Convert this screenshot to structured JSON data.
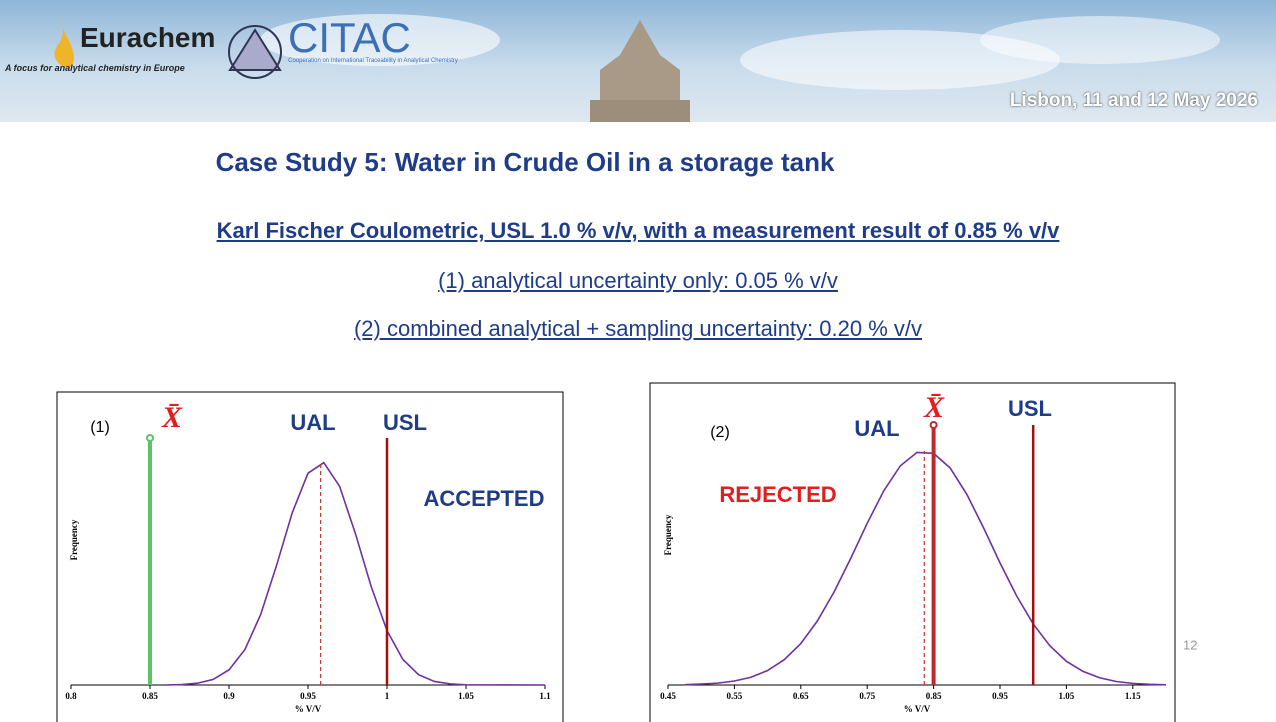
{
  "header": {
    "eurachem": "Eurachem",
    "eurachem_tagline": "A focus for analytical chemistry in Europe",
    "citac": "CITAC",
    "citac_tagline": "Cooperation on International Traceability in Analytical Chemistry",
    "event": "Lisbon, 11 and 12 May 2026"
  },
  "title": "Case Study 5: Water in Crude Oil in a storage tank",
  "lines": [
    "Karl Fischer Coulometric, USL 1.0 % v/v, with a measurement result of 0.85 % v/v",
    "(1) analytical uncertainty only: 0.05 % v/v",
    "(2) combined analytical + sampling uncertainty: 0.20 % v/v"
  ],
  "page_number": "12",
  "chart_data": [
    {
      "type": "line",
      "panel": "(1)",
      "status": "ACCEPTED",
      "status_color": "#1f3c88",
      "xlabel": "% V/V",
      "ylabel": "Frequency",
      "color": "#7030a0",
      "x": [
        0.86,
        0.87,
        0.88,
        0.89,
        0.9,
        0.91,
        0.92,
        0.93,
        0.94,
        0.95,
        0.96,
        0.97,
        0.98,
        0.99,
        1.0,
        1.01,
        1.02,
        1.03,
        1.04,
        1.05,
        1.1
      ],
      "values": [
        0.0,
        0.002,
        0.008,
        0.025,
        0.068,
        0.158,
        0.315,
        0.534,
        0.772,
        0.95,
        0.997,
        0.891,
        0.679,
        0.441,
        0.244,
        0.115,
        0.046,
        0.016,
        0.005,
        0.001,
        0.0
      ],
      "xlim": [
        0.8,
        1.1
      ],
      "ylim": [
        0,
        1
      ],
      "xticks": [
        0.8,
        0.85,
        0.9,
        0.95,
        1,
        1.05,
        1.1
      ],
      "markers": [
        {
          "label": "X̄",
          "x": 0.85,
          "color": "#5cc36a",
          "dashed": false
        },
        {
          "label": "UAL",
          "x": 0.958,
          "color": "#c0392b",
          "dashed": true
        },
        {
          "label": "USL",
          "x": 1.0,
          "color": "#a01010",
          "dashed": false
        }
      ]
    },
    {
      "type": "line",
      "panel": "(2)",
      "status": "REJECTED",
      "status_color": "#e02020",
      "xlabel": "% V/V",
      "ylabel": "Frequency",
      "color": "#7030a0",
      "x": [
        0.475,
        0.5,
        0.525,
        0.55,
        0.575,
        0.6,
        0.625,
        0.65,
        0.675,
        0.7,
        0.725,
        0.75,
        0.775,
        0.8,
        0.825,
        0.85,
        0.875,
        0.9,
        0.925,
        0.95,
        0.975,
        1.0,
        1.025,
        1.05,
        1.075,
        1.1,
        1.125,
        1.15,
        1.175,
        1.2
      ],
      "values": [
        0.0015,
        0.004,
        0.008,
        0.017,
        0.033,
        0.062,
        0.108,
        0.177,
        0.274,
        0.397,
        0.54,
        0.691,
        0.83,
        0.937,
        0.994,
        0.99,
        0.927,
        0.815,
        0.673,
        0.522,
        0.381,
        0.261,
        0.168,
        0.101,
        0.058,
        0.031,
        0.015,
        0.007,
        0.003,
        0.001
      ],
      "xlim": [
        0.45,
        1.2
      ],
      "ylim": [
        0,
        1
      ],
      "xticks": [
        0.45,
        0.55,
        0.65,
        0.75,
        0.85,
        0.95,
        1.05,
        1.15
      ],
      "markers": [
        {
          "label": "UAL",
          "x": 0.836,
          "color": "#c0392b",
          "dashed": true
        },
        {
          "label": "X̄",
          "x": 0.85,
          "color": "#c0282d",
          "dashed": false
        },
        {
          "label": "USL",
          "x": 1.0,
          "color": "#a01010",
          "dashed": false
        }
      ]
    }
  ]
}
